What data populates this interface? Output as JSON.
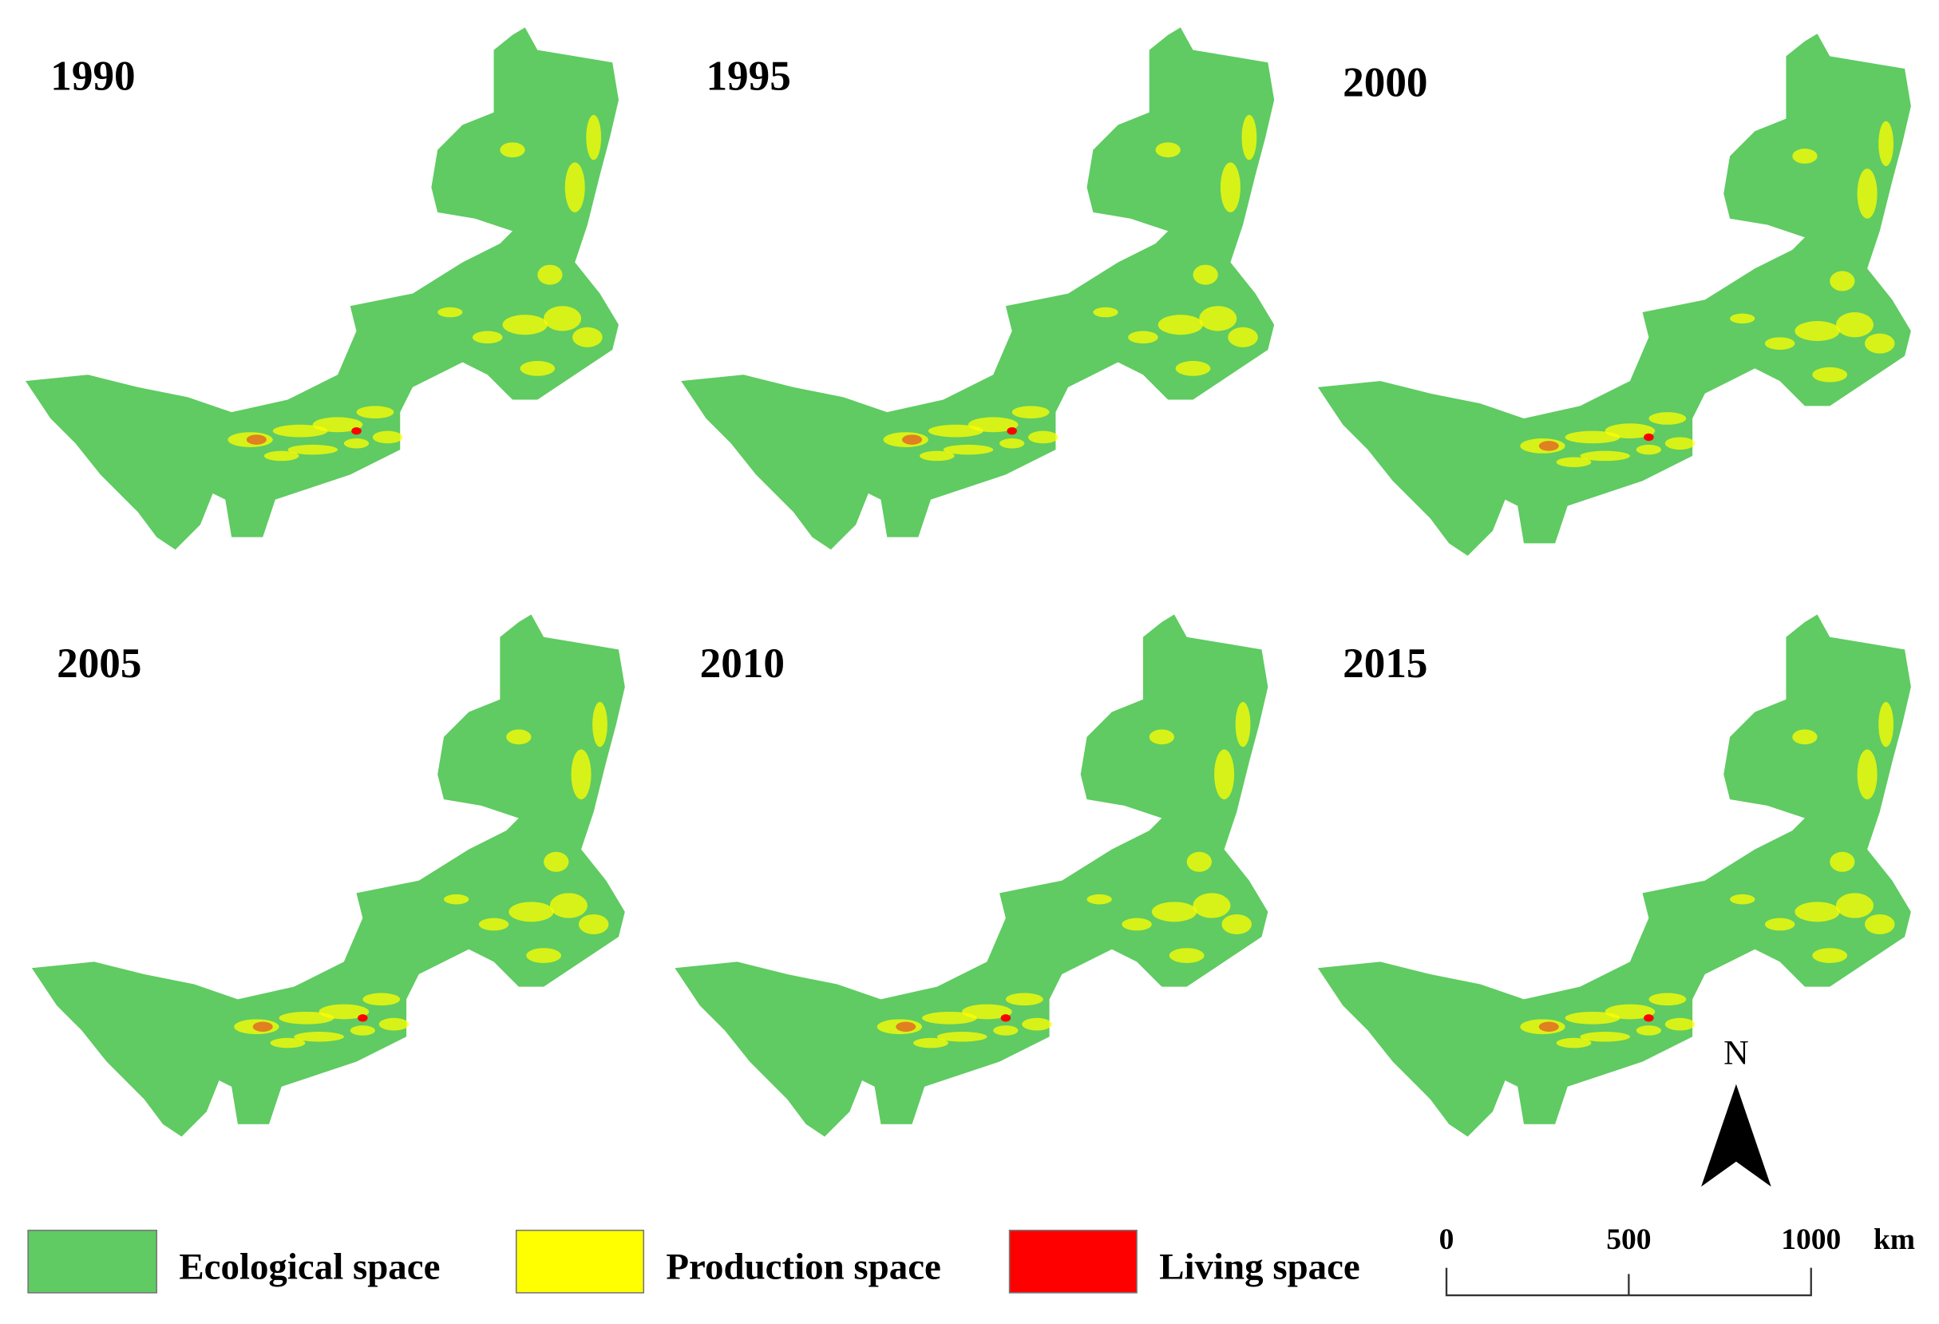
{
  "panels": [
    {
      "year": "1990"
    },
    {
      "year": "1995"
    },
    {
      "year": "2000"
    },
    {
      "year": "2005"
    },
    {
      "year": "2010"
    },
    {
      "year": "2015"
    }
  ],
  "legend": [
    {
      "label": "Ecological space"
    },
    {
      "label": "Production space"
    },
    {
      "label": "Living space"
    }
  ],
  "scale_bar": {
    "ticks": [
      "0",
      "500",
      "1000"
    ],
    "unit": "km"
  },
  "north_arrow": "N"
}
